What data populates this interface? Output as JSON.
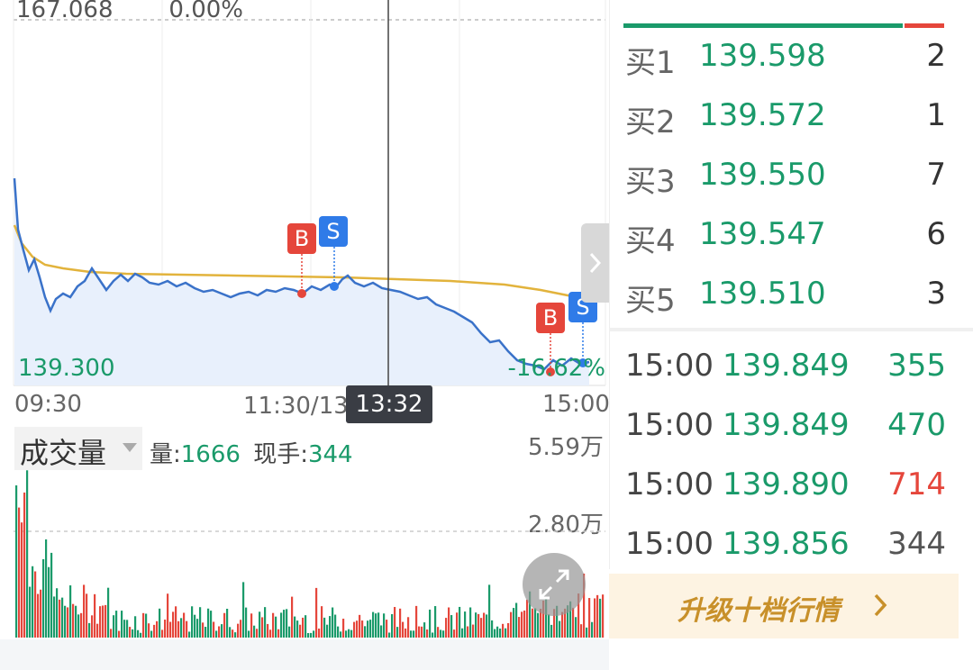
{
  "chart": {
    "price_high": "167.068",
    "pct_high": "0.00%",
    "price_low": "139.300",
    "pct_low": "-16.62%",
    "time_start": "09:30",
    "time_mid": "11:30/13:00",
    "time_end": "15:00",
    "crosshair_time": "13:32",
    "markers": [
      {
        "label": "B",
        "color": "#e5463b"
      },
      {
        "label": "S",
        "color": "#2f7be8"
      },
      {
        "label": "B",
        "color": "#e5463b"
      },
      {
        "label": "S",
        "color": "#2f7be8"
      }
    ],
    "expand_icon": "chevron-right-icon"
  },
  "volume": {
    "title": "成交量",
    "vol_label": "量:",
    "vol_value": "1666",
    "hand_label": "现手:",
    "hand_value": "344",
    "scale_high": "5.59万",
    "scale_mid": "2.80万",
    "fullscreen_icon": "expand-arrows-icon"
  },
  "order_book": [
    {
      "label": "买1",
      "price": "139.598",
      "qty": "2"
    },
    {
      "label": "买2",
      "price": "139.572",
      "qty": "1"
    },
    {
      "label": "买3",
      "price": "139.550",
      "qty": "7"
    },
    {
      "label": "买4",
      "price": "139.547",
      "qty": "6"
    },
    {
      "label": "买5",
      "price": "139.510",
      "qty": "3"
    }
  ],
  "ticks": [
    {
      "time": "15:00",
      "price": "139.849",
      "volume": "355",
      "color": "#1a9a6a"
    },
    {
      "time": "15:00",
      "price": "139.849",
      "volume": "470",
      "color": "#1a9a6a"
    },
    {
      "time": "15:00",
      "price": "139.890",
      "volume": "714",
      "color": "#e5463b"
    },
    {
      "time": "15:00",
      "price": "139.856",
      "volume": "344",
      "color": "#555555"
    }
  ],
  "upgrade": {
    "label": "升级十档行情",
    "icon": "chevron-right-icon"
  },
  "colors": {
    "price_line": "#3a72c9",
    "avg_line": "#e2b33c",
    "up": "#e5463b",
    "down": "#1a9a6a"
  }
}
